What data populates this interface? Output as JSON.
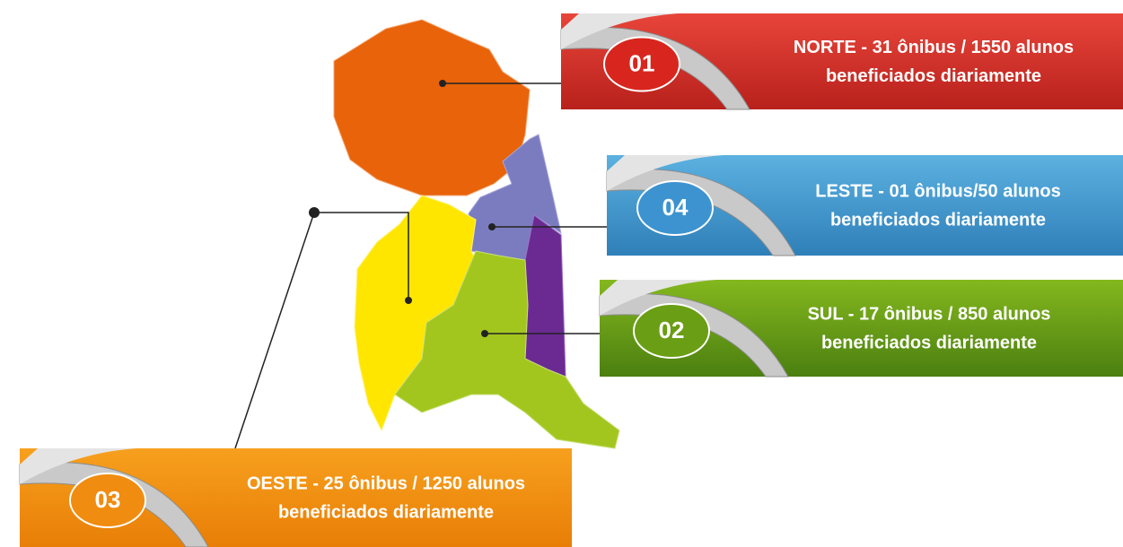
{
  "callouts": [
    {
      "badge": "01",
      "line1": "NORTE - 31 ônibus / 1550 alunos",
      "line2": "beneficiados diariamente"
    },
    {
      "badge": "04",
      "line1": "LESTE - 01 ônibus/50 alunos",
      "line2": "beneficiados diariamente"
    },
    {
      "badge": "02",
      "line1": "SUL - 17 ônibus / 850 alunos",
      "line2": "beneficiados diariamente"
    },
    {
      "badge": "03",
      "line1": "OESTE - 25 ônibus / 1250 alunos",
      "line2": "beneficiados diariamente"
    }
  ]
}
